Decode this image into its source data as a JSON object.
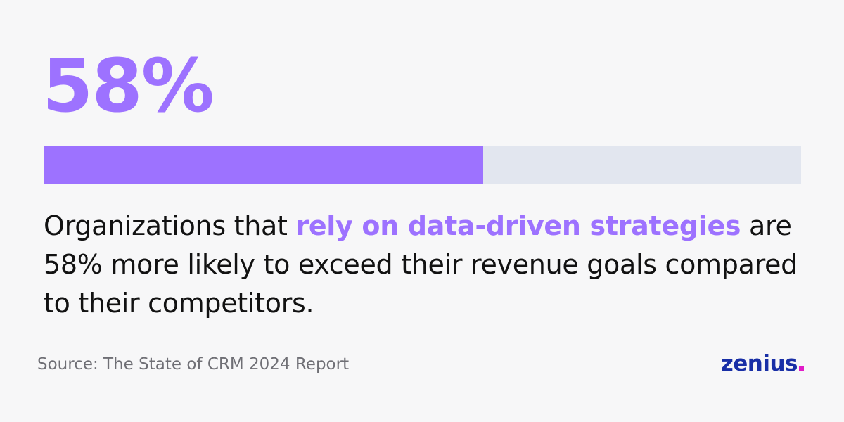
{
  "stat": {
    "value_label": "58%",
    "progress_percent": 58,
    "fill_color": "#9d72ff",
    "track_color": "#e2e6ef"
  },
  "statement": {
    "part1": "Organizations that ",
    "highlight": "rely on data-driven strategies",
    "part2": " are 58% more likely to exceed their revenue goals compared to their competitors."
  },
  "source": "Source: The State of CRM 2024 Report",
  "logo": {
    "text": "zenius",
    "dot": ".",
    "text_color": "#182ea6",
    "dot_color": "#e11cc8"
  }
}
